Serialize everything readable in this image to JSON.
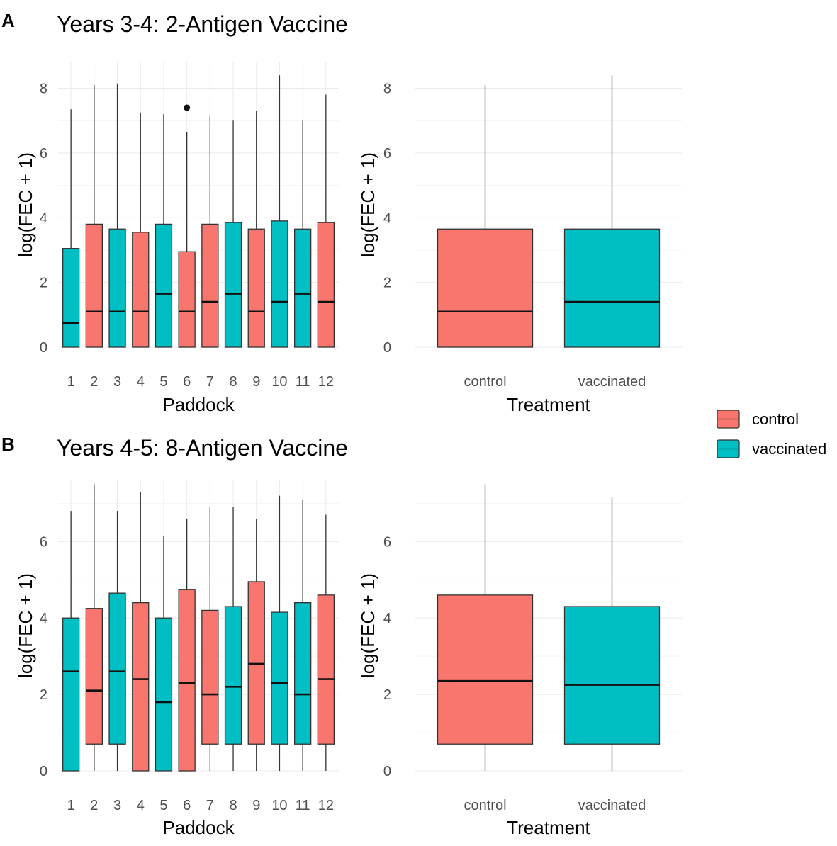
{
  "colors": {
    "control": "#f8766d",
    "vaccinated": "#00bfc4"
  },
  "legend": {
    "entries": [
      {
        "label": "control",
        "group": "control"
      },
      {
        "label": "vaccinated",
        "group": "vaccinated"
      }
    ]
  },
  "chart_data": [
    {
      "panel_letter": "A",
      "title": "Years 3-4: 2-Antigen Vaccine",
      "type": "boxplot",
      "xlabel": "Paddock",
      "ylabel": "log(FEC + 1)",
      "ylim": [
        0,
        8.8
      ],
      "yticks": [
        0,
        2,
        4,
        6,
        8
      ],
      "categories": [
        "1",
        "2",
        "3",
        "4",
        "5",
        "6",
        "7",
        "8",
        "9",
        "10",
        "11",
        "12"
      ],
      "groups": [
        "vaccinated",
        "control",
        "vaccinated",
        "control",
        "vaccinated",
        "control",
        "control",
        "vaccinated",
        "control",
        "vaccinated",
        "vaccinated",
        "control"
      ],
      "boxes": [
        {
          "min": 0,
          "q1": 0,
          "median": 0.75,
          "q3": 3.05,
          "max": 7.35
        },
        {
          "min": 0,
          "q1": 0,
          "median": 1.1,
          "q3": 3.8,
          "max": 8.1
        },
        {
          "min": 0,
          "q1": 0,
          "median": 1.1,
          "q3": 3.65,
          "max": 8.15
        },
        {
          "min": 0,
          "q1": 0,
          "median": 1.1,
          "q3": 3.55,
          "max": 7.25
        },
        {
          "min": 0,
          "q1": 0,
          "median": 1.65,
          "q3": 3.8,
          "max": 7.2
        },
        {
          "min": 0,
          "q1": 0,
          "median": 1.1,
          "q3": 2.95,
          "max": 6.65,
          "outliers": [
            7.4
          ]
        },
        {
          "min": 0,
          "q1": 0,
          "median": 1.4,
          "q3": 3.8,
          "max": 7.15
        },
        {
          "min": 0,
          "q1": 0,
          "median": 1.65,
          "q3": 3.85,
          "max": 7.0
        },
        {
          "min": 0,
          "q1": 0,
          "median": 1.1,
          "q3": 3.65,
          "max": 7.3
        },
        {
          "min": 0,
          "q1": 0,
          "median": 1.4,
          "q3": 3.9,
          "max": 8.4
        },
        {
          "min": 0,
          "q1": 0,
          "median": 1.65,
          "q3": 3.65,
          "max": 7.0
        },
        {
          "min": 0,
          "q1": 0,
          "median": 1.4,
          "q3": 3.85,
          "max": 7.8
        }
      ],
      "summary": {
        "xlabel": "Treatment",
        "ylabel": "log(FEC + 1)",
        "ylim": [
          0,
          8.8
        ],
        "yticks": [
          0,
          2,
          4,
          6,
          8
        ],
        "categories": [
          "control",
          "vaccinated"
        ],
        "groups": [
          "control",
          "vaccinated"
        ],
        "boxes": [
          {
            "min": 0,
            "q1": 0,
            "median": 1.1,
            "q3": 3.65,
            "max": 8.1
          },
          {
            "min": 0,
            "q1": 0,
            "median": 1.4,
            "q3": 3.65,
            "max": 8.4
          }
        ]
      }
    },
    {
      "panel_letter": "B",
      "title": "Years 4-5: 8-Antigen Vaccine",
      "type": "boxplot",
      "xlabel": "Paddock",
      "ylabel": "log(FEC + 1)",
      "ylim": [
        0,
        7.6
      ],
      "yticks": [
        0,
        2,
        4,
        6
      ],
      "categories": [
        "1",
        "2",
        "3",
        "4",
        "5",
        "6",
        "7",
        "8",
        "9",
        "10",
        "11",
        "12"
      ],
      "groups": [
        "vaccinated",
        "control",
        "vaccinated",
        "control",
        "vaccinated",
        "control",
        "control",
        "vaccinated",
        "control",
        "vaccinated",
        "vaccinated",
        "control"
      ],
      "boxes": [
        {
          "min": 0,
          "q1": 0,
          "median": 2.6,
          "q3": 4.0,
          "max": 6.8
        },
        {
          "min": 0,
          "q1": 0.7,
          "median": 2.1,
          "q3": 4.25,
          "max": 7.5
        },
        {
          "min": 0,
          "q1": 0.7,
          "median": 2.6,
          "q3": 4.65,
          "max": 6.8
        },
        {
          "min": 0,
          "q1": 0,
          "median": 2.4,
          "q3": 4.4,
          "max": 7.3
        },
        {
          "min": 0,
          "q1": 0,
          "median": 1.8,
          "q3": 4.0,
          "max": 6.15
        },
        {
          "min": 0,
          "q1": 0,
          "median": 2.3,
          "q3": 4.75,
          "max": 6.6
        },
        {
          "min": 0,
          "q1": 0.7,
          "median": 2.0,
          "q3": 4.2,
          "max": 6.9
        },
        {
          "min": 0,
          "q1": 0.7,
          "median": 2.2,
          "q3": 4.3,
          "max": 6.9
        },
        {
          "min": 0,
          "q1": 0.7,
          "median": 2.8,
          "q3": 4.95,
          "max": 6.6
        },
        {
          "min": 0,
          "q1": 0.7,
          "median": 2.3,
          "q3": 4.15,
          "max": 7.2
        },
        {
          "min": 0,
          "q1": 0.7,
          "median": 2.0,
          "q3": 4.4,
          "max": 7.1
        },
        {
          "min": 0,
          "q1": 0.7,
          "median": 2.4,
          "q3": 4.6,
          "max": 6.7
        }
      ],
      "summary": {
        "xlabel": "Treatment",
        "ylabel": "log(FEC + 1)",
        "ylim": [
          0,
          7.6
        ],
        "yticks": [
          0,
          2,
          4,
          6
        ],
        "categories": [
          "control",
          "vaccinated"
        ],
        "groups": [
          "control",
          "vaccinated"
        ],
        "boxes": [
          {
            "min": 0,
            "q1": 0.7,
            "median": 2.35,
            "q3": 4.6,
            "max": 7.5
          },
          {
            "min": 0,
            "q1": 0.7,
            "median": 2.25,
            "q3": 4.3,
            "max": 7.15
          }
        ]
      }
    }
  ]
}
